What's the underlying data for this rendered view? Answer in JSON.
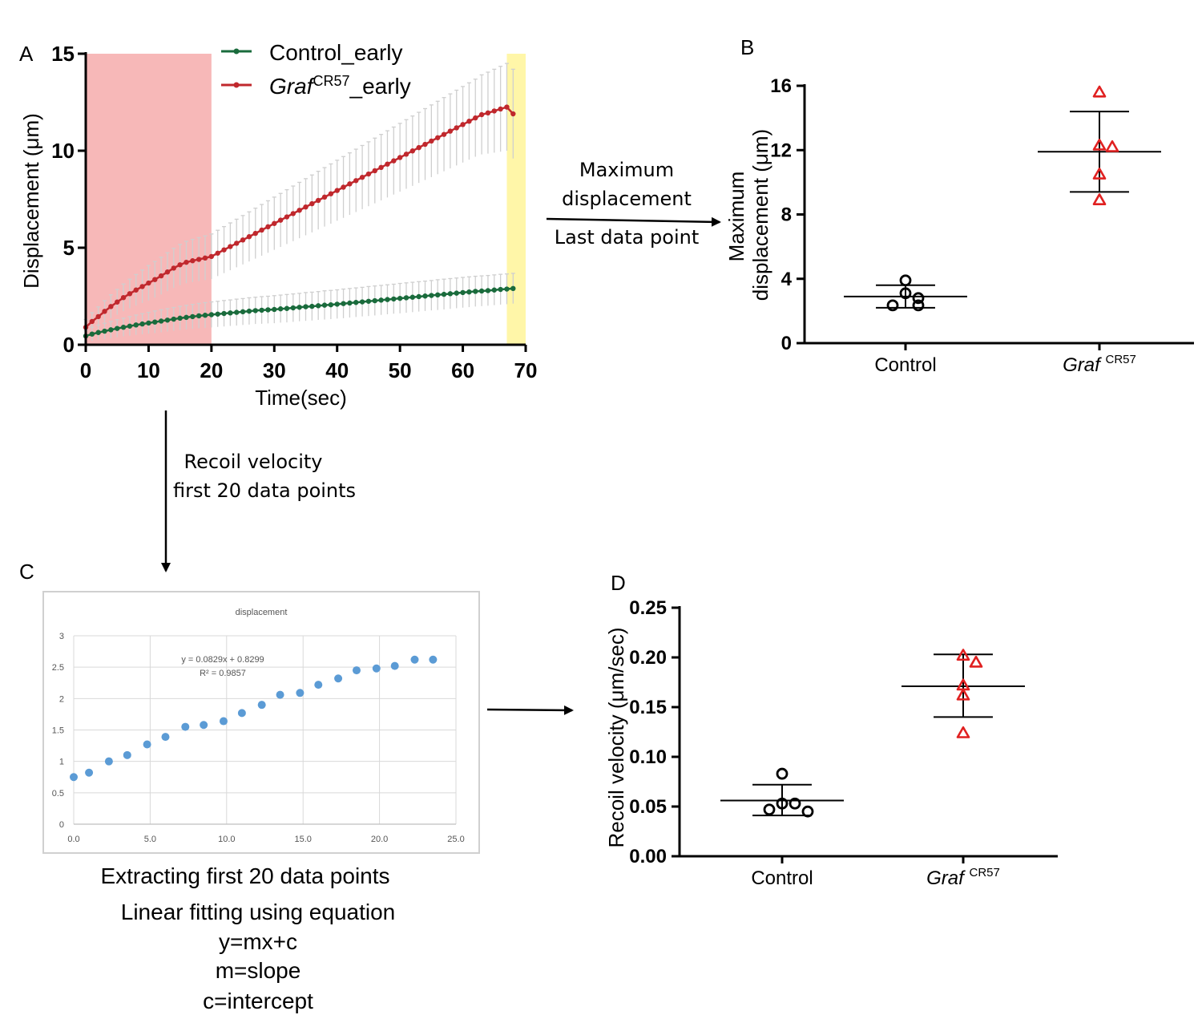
{
  "chart_data": [
    {
      "panel": "A",
      "type": "line",
      "xlabel": "Time(sec)",
      "ylabel": "Displacement (μm)",
      "xlim": [
        0,
        70
      ],
      "ylim": [
        0,
        15
      ],
      "xticks": [
        0,
        10,
        20,
        30,
        40,
        50,
        60,
        70
      ],
      "yticks": [
        0,
        5,
        10,
        15
      ],
      "legend_position": "top-center",
      "shaded_regions": [
        {
          "x": [
            0,
            20
          ],
          "color": "#f7b8b8"
        },
        {
          "x": [
            67,
            70
          ],
          "color": "#fff6a8"
        }
      ],
      "x": [
        0,
        1,
        2,
        3,
        4,
        5,
        6,
        7,
        8,
        9,
        10,
        11,
        12,
        13,
        14,
        15,
        16,
        17,
        18,
        19,
        20,
        21,
        22,
        23,
        24,
        25,
        26,
        27,
        28,
        29,
        30,
        31,
        32,
        33,
        34,
        35,
        36,
        37,
        38,
        39,
        40,
        41,
        42,
        43,
        44,
        45,
        46,
        47,
        48,
        49,
        50,
        51,
        52,
        53,
        54,
        55,
        56,
        57,
        58,
        59,
        60,
        61,
        62,
        63,
        64,
        65,
        66,
        67,
        68
      ],
      "series": [
        {
          "name": "Control_early",
          "color": "#1a6b3c",
          "values": [
            0.45,
            0.55,
            0.63,
            0.7,
            0.77,
            0.84,
            0.9,
            0.96,
            1.02,
            1.07,
            1.12,
            1.17,
            1.22,
            1.27,
            1.32,
            1.37,
            1.41,
            1.45,
            1.49,
            1.52,
            1.55,
            1.58,
            1.61,
            1.64,
            1.67,
            1.7,
            1.73,
            1.76,
            1.78,
            1.8,
            1.82,
            1.85,
            1.87,
            1.9,
            1.93,
            1.96,
            1.98,
            2.01,
            2.04,
            2.06,
            2.09,
            2.12,
            2.15,
            2.18,
            2.21,
            2.24,
            2.27,
            2.3,
            2.33,
            2.36,
            2.39,
            2.42,
            2.45,
            2.48,
            2.51,
            2.54,
            2.57,
            2.6,
            2.63,
            2.66,
            2.69,
            2.72,
            2.75,
            2.77,
            2.79,
            2.82,
            2.85,
            2.87,
            2.9
          ],
          "error": [
            0.3,
            0.35,
            0.38,
            0.41,
            0.43,
            0.45,
            0.47,
            0.49,
            0.51,
            0.53,
            0.55,
            0.57,
            0.58,
            0.59,
            0.6,
            0.61,
            0.62,
            0.63,
            0.64,
            0.65,
            0.66,
            0.66,
            0.67,
            0.67,
            0.68,
            0.68,
            0.69,
            0.69,
            0.7,
            0.7,
            0.71,
            0.71,
            0.72,
            0.72,
            0.72,
            0.73,
            0.73,
            0.73,
            0.74,
            0.74,
            0.74,
            0.75,
            0.75,
            0.75,
            0.75,
            0.76,
            0.76,
            0.76,
            0.76,
            0.76,
            0.77,
            0.77,
            0.77,
            0.77,
            0.77,
            0.77,
            0.78,
            0.78,
            0.78,
            0.78,
            0.78,
            0.78,
            0.78,
            0.78,
            0.78,
            0.78,
            0.78,
            0.78,
            0.78
          ]
        },
        {
          "name": "Graf CR57 _early",
          "color": "#c0282d",
          "values": [
            0.9,
            1.2,
            1.45,
            1.72,
            1.97,
            2.2,
            2.43,
            2.63,
            2.82,
            3.0,
            3.18,
            3.36,
            3.55,
            3.75,
            3.95,
            4.12,
            4.25,
            4.33,
            4.4,
            4.47,
            4.55,
            4.72,
            4.89,
            5.06,
            5.23,
            5.4,
            5.57,
            5.74,
            5.91,
            6.08,
            6.25,
            6.42,
            6.59,
            6.76,
            6.93,
            7.1,
            7.27,
            7.44,
            7.61,
            7.78,
            7.95,
            8.12,
            8.29,
            8.46,
            8.63,
            8.8,
            8.97,
            9.14,
            9.31,
            9.48,
            9.65,
            9.82,
            9.99,
            10.16,
            10.33,
            10.5,
            10.67,
            10.84,
            11.01,
            11.18,
            11.35,
            11.52,
            11.69,
            11.86,
            11.95,
            12.05,
            12.15,
            12.25,
            11.9
          ],
          "error": [
            0.4,
            0.45,
            0.5,
            0.55,
            0.6,
            0.65,
            0.7,
            0.75,
            0.8,
            0.85,
            0.9,
            0.93,
            0.96,
            0.99,
            1.02,
            1.05,
            1.08,
            1.1,
            1.12,
            1.14,
            1.16,
            1.18,
            1.2,
            1.22,
            1.24,
            1.26,
            1.28,
            1.3,
            1.32,
            1.34,
            1.36,
            1.38,
            1.4,
            1.42,
            1.44,
            1.46,
            1.48,
            1.5,
            1.52,
            1.54,
            1.56,
            1.58,
            1.6,
            1.62,
            1.64,
            1.66,
            1.68,
            1.7,
            1.72,
            1.74,
            1.76,
            1.78,
            1.8,
            1.82,
            1.84,
            1.86,
            1.88,
            1.9,
            1.92,
            1.94,
            1.96,
            1.98,
            2.0,
            2.05,
            2.1,
            2.15,
            2.2,
            2.25,
            2.3
          ]
        }
      ]
    },
    {
      "panel": "B",
      "type": "scatter",
      "ylabel_line1": "Maximum",
      "ylabel_line2": "displacement (μm)",
      "ylim": [
        0,
        16
      ],
      "yticks": [
        0,
        4,
        8,
        12,
        16
      ],
      "categories": [
        "Control",
        "Graf"
      ],
      "category_superscript": [
        "",
        "CR57"
      ],
      "groups": [
        {
          "points": [
            3.9,
            3.1,
            2.8,
            2.35,
            2.35
          ],
          "mean": 2.9,
          "sd_low": 2.2,
          "sd_high": 3.6,
          "marker": "circle",
          "color": "#000000"
        },
        {
          "points": [
            15.6,
            12.3,
            12.2,
            10.5,
            8.9
          ],
          "mean": 11.9,
          "sd_low": 9.4,
          "sd_high": 14.4,
          "marker": "triangle",
          "color": "#e02020"
        }
      ]
    },
    {
      "panel": "C",
      "type": "scatter",
      "title": "displacement",
      "xlim": [
        0,
        25
      ],
      "ylim": [
        0,
        3
      ],
      "xticks": [
        "0.0",
        "5.0",
        "10.0",
        "15.0",
        "20.0",
        "25.0"
      ],
      "yticks": [
        "0",
        "0.5",
        "1",
        "1.5",
        "2",
        "2.5",
        "3"
      ],
      "equation": "y = 0.0829x + 0.8299",
      "r_squared": "R² = 0.9857",
      "color": "#5b9bd5",
      "x": [
        0,
        1.0,
        2.3,
        3.5,
        4.8,
        6.0,
        7.3,
        8.5,
        9.8,
        11.0,
        12.3,
        13.5,
        14.8,
        16.0,
        17.3,
        18.5,
        19.8,
        21.0,
        22.3,
        23.5
      ],
      "values": [
        0.75,
        0.82,
        1.0,
        1.1,
        1.27,
        1.39,
        1.55,
        1.58,
        1.64,
        1.77,
        1.9,
        2.06,
        2.09,
        2.22,
        2.32,
        2.45,
        2.48,
        2.52,
        2.62,
        2.62
      ]
    },
    {
      "panel": "D",
      "type": "scatter",
      "ylabel": "Recoil velocity (μm/sec)",
      "ylim": [
        0,
        0.25
      ],
      "yticks": [
        "0.00",
        "0.05",
        "0.10",
        "0.15",
        "0.20",
        "0.25"
      ],
      "categories": [
        "Control",
        "Graf"
      ],
      "category_superscript": [
        "",
        "CR57"
      ],
      "groups": [
        {
          "points": [
            0.083,
            0.053,
            0.053,
            0.047,
            0.045
          ],
          "mean": 0.056,
          "sd_low": 0.041,
          "sd_high": 0.072,
          "marker": "circle",
          "color": "#000000"
        },
        {
          "points": [
            0.202,
            0.195,
            0.172,
            0.162,
            0.124
          ],
          "mean": 0.171,
          "sd_low": 0.14,
          "sd_high": 0.203,
          "marker": "triangle",
          "color": "#e02020"
        }
      ]
    }
  ],
  "labels": {
    "panel_a": "A",
    "panel_b": "B",
    "panel_c": "C",
    "panel_d": "D",
    "legend_control": "Control_early",
    "legend_graf_italic": "Graf",
    "legend_graf_sup": "CR57",
    "legend_graf_suffix": "_early",
    "arrow_ab_line1": "Maximum",
    "arrow_ab_line2": "displacement",
    "arrow_ab_line3": "Last data point",
    "arrow_ac_line1": "Recoil velocity",
    "arrow_ac_line2": "first 20 data points",
    "caption_c_line1": "Extracting first 20 data points",
    "caption_c_line2": "Linear fitting using equation",
    "caption_c_line3": "y=mx+c",
    "caption_c_line4": "m=slope",
    "caption_c_line5": "c=intercept"
  }
}
